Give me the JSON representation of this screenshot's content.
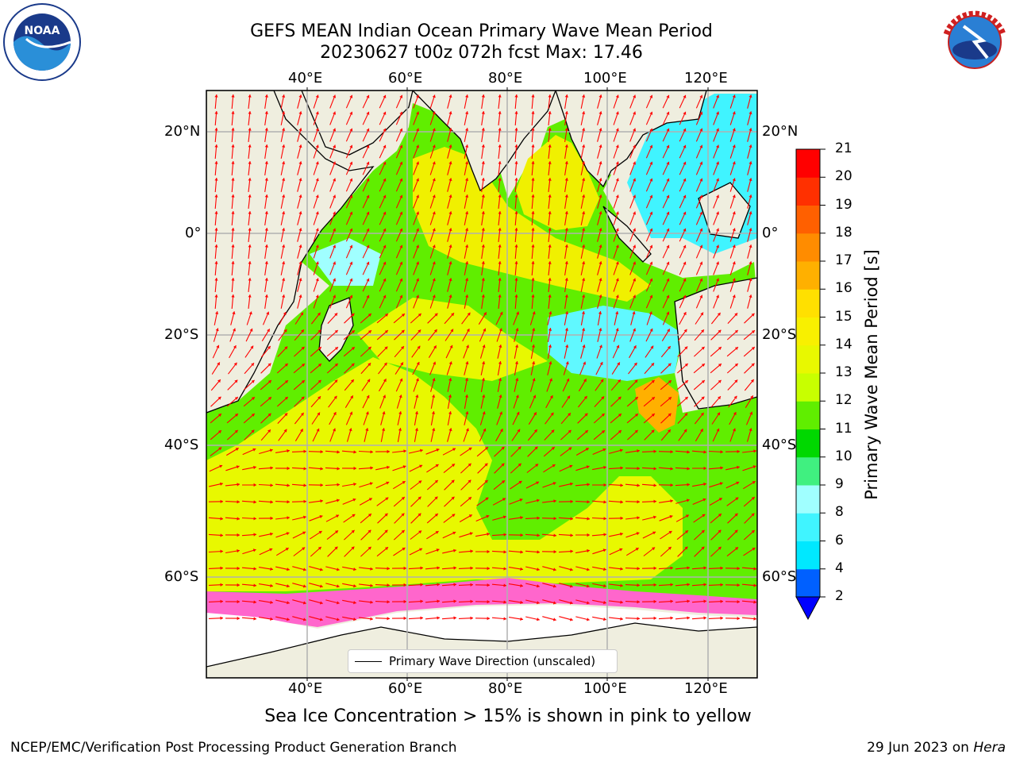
{
  "header": {
    "title_line1": "GEFS MEAN Indian Ocean Primary Wave Mean Period",
    "title_line2": "20230627 t00z 072h fcst   Max: 17.46"
  },
  "logos": {
    "left": "NOAA",
    "right": "NATIONAL WEATHER SERVICE"
  },
  "map": {
    "lon_ticks": [
      "40°E",
      "60°E",
      "80°E",
      "100°E",
      "120°E"
    ],
    "lat_ticks": [
      "20°N",
      "0°",
      "20°S",
      "40°S",
      "60°S"
    ],
    "colors": {
      "land": "#efeedf",
      "ice": "#ffffff",
      "grid": "#b0b0b0",
      "arrow": "#ff0000"
    }
  },
  "colorbar": {
    "label": "Primary Wave Mean Period [s]",
    "ticks": [
      "2",
      "4",
      "6",
      "8",
      "9",
      "10",
      "11",
      "12",
      "13",
      "14",
      "15",
      "16",
      "17",
      "18",
      "19",
      "20",
      "21"
    ],
    "colors": [
      "#0060ff",
      "#00e8ff",
      "#40f4ff",
      "#a0ffff",
      "#40f080",
      "#00d800",
      "#60ee00",
      "#c8ff00",
      "#e8f800",
      "#f8f000",
      "#ffe000",
      "#ffb000",
      "#ff8c00",
      "#ff6000",
      "#ff3000",
      "#ff0000"
    ],
    "under_color": "#0000ff"
  },
  "legend": {
    "label": "Primary Wave Direction (unscaled)"
  },
  "footer": {
    "subtitle": "Sea Ice Concentration > 15% is shown in pink to yellow",
    "left": "NCEP/EMC/Verification Post Processing Product Generation Branch",
    "right_prefix": "29 Jun 2023 on ",
    "right_host": "Hera"
  }
}
